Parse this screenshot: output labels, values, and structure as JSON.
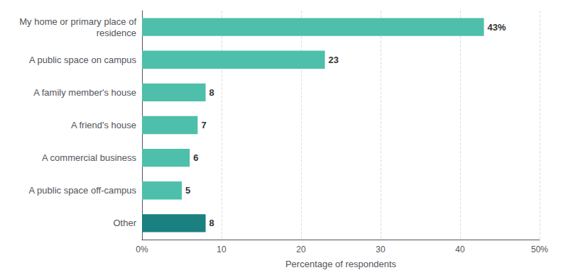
{
  "chart_data": {
    "type": "bar",
    "orientation": "horizontal",
    "categories": [
      "My home or primary place of\nresidence",
      "A public space on campus",
      "A family member's house",
      "A friend's house",
      "A commercial business",
      "A public space off-campus",
      "Other"
    ],
    "values": [
      43,
      23,
      8,
      7,
      6,
      5,
      8
    ],
    "value_labels": [
      "43%",
      "23",
      "8",
      "7",
      "6",
      "5",
      "8"
    ],
    "data_labels": true,
    "colors": [
      "#4dbfaa",
      "#4dbfaa",
      "#4dbfaa",
      "#4dbfaa",
      "#4dbfaa",
      "#4dbfaa",
      "#1a8080"
    ],
    "xlabel": "Percentage of respondents",
    "xlim": [
      0,
      50
    ],
    "xticks": [
      {
        "value": 0,
        "label": "0%"
      },
      10,
      20,
      30,
      40,
      {
        "value": 50,
        "label": "50%"
      }
    ],
    "grid": true
  }
}
